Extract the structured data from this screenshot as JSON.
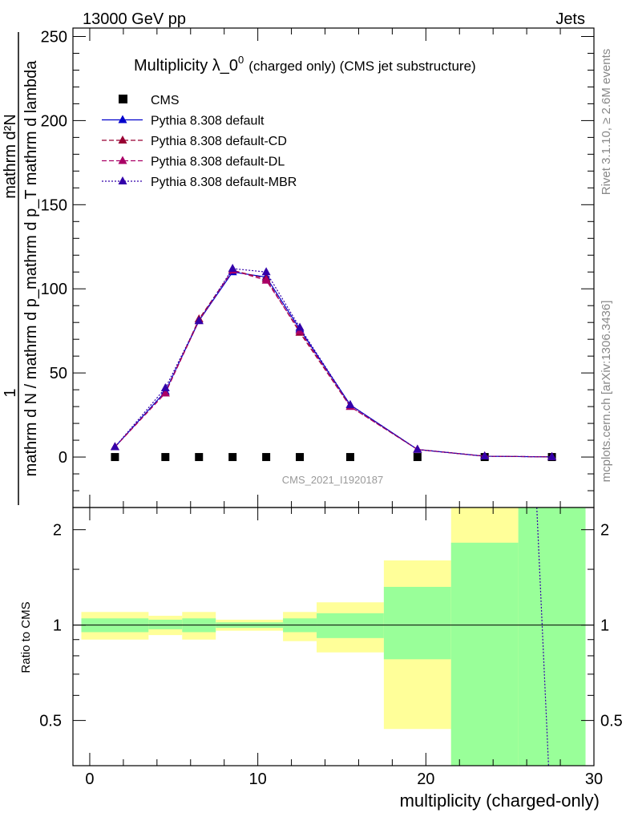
{
  "header": {
    "energy": "13000 GeV pp",
    "category": "Jets",
    "title_main": "Multiplicity λ_0",
    "title_sup": "0",
    "title_sub": "(charged only) (CMS jet substructure)",
    "rivet": "Rivet 3.1.10, ≥ 2.6M events",
    "mcplots": "mcplots.cern.ch [arXiv:1306.3436]",
    "analysis": "CMS_2021_I1920187"
  },
  "colors": {
    "cms": "#000000",
    "default": "#0000cc",
    "default_cd": "#990033",
    "default_dl": "#aa0066",
    "default_mbr": "#3300aa",
    "band_green": "#99ff99",
    "band_yellow": "#ffff99"
  },
  "chart_data": [
    {
      "type": "line",
      "ylabel_numer": "1",
      "ylabel_denom": "mathrm d N / mathrm d p_mathrm d p_T mathrm d lambda",
      "ylabel_top": "mathrm d²N",
      "xlim": [
        -1,
        30
      ],
      "ylim": [
        -30,
        255
      ],
      "yticks": [
        "0",
        "50",
        "100",
        "150",
        "200",
        "250"
      ],
      "x": [
        1.5,
        4.5,
        6.5,
        8.5,
        10.5,
        12.5,
        15.5,
        19.5,
        23.5,
        27.5
      ],
      "series": [
        {
          "name": "CMS",
          "style": "square",
          "values": [
            0,
            0,
            0,
            0,
            0,
            0,
            0,
            0,
            0,
            0
          ]
        },
        {
          "name": "Pythia 8.308 default",
          "style": "solid",
          "values": [
            6,
            39,
            81,
            110,
            107,
            76,
            31,
            4.5,
            0.5,
            0.1
          ]
        },
        {
          "name": "Pythia 8.308 default-CD",
          "style": "dashed",
          "values": [
            6,
            38,
            82,
            111,
            106,
            74,
            30,
            4.5,
            0.5,
            0.1
          ]
        },
        {
          "name": "Pythia 8.308 default-DL",
          "style": "dashed",
          "values": [
            6,
            38,
            81,
            111,
            105,
            75,
            30,
            4.5,
            0.5,
            0.1
          ]
        },
        {
          "name": "Pythia 8.308 default-MBR",
          "style": "dotted",
          "values": [
            6,
            41,
            81,
            112,
            110,
            77,
            31,
            4.5,
            0.5,
            0.1
          ]
        }
      ]
    },
    {
      "type": "area",
      "ylabel": "Ratio to CMS",
      "xlabel": "multiplicity (charged-only)",
      "xlim": [
        -1,
        30
      ],
      "xticks": [
        "0",
        "10",
        "20",
        "30"
      ],
      "yticks": [
        "0.5",
        "1",
        "2"
      ],
      "ylim": [
        0.36,
        2.35
      ],
      "bins": [
        {
          "x": [
            -0.5,
            3.5
          ],
          "green": [
            0.95,
            1.05
          ],
          "yellow": [
            0.9,
            1.1
          ]
        },
        {
          "x": [
            3.5,
            5.5
          ],
          "green": [
            0.97,
            1.04
          ],
          "yellow": [
            0.93,
            1.07
          ]
        },
        {
          "x": [
            5.5,
            7.5
          ],
          "green": [
            0.95,
            1.05
          ],
          "yellow": [
            0.9,
            1.1
          ]
        },
        {
          "x": [
            7.5,
            11.5
          ],
          "green": [
            0.98,
            1.02
          ],
          "yellow": [
            0.96,
            1.04
          ]
        },
        {
          "x": [
            11.5,
            13.5
          ],
          "green": [
            0.95,
            1.05
          ],
          "yellow": [
            0.89,
            1.1
          ]
        },
        {
          "x": [
            13.5,
            17.5
          ],
          "green": [
            0.91,
            1.09
          ],
          "yellow": [
            0.82,
            1.18
          ]
        },
        {
          "x": [
            17.5,
            21.5
          ],
          "green": [
            0.78,
            1.32
          ],
          "yellow": [
            0.47,
            1.6
          ]
        },
        {
          "x": [
            21.5,
            25.5
          ],
          "green": [
            0.36,
            1.82
          ],
          "yellow": [
            0.36,
            2.35
          ]
        },
        {
          "x": [
            25.5,
            29.5
          ],
          "green": [
            0.36,
            2.35
          ],
          "yellow": [
            0.36,
            2.35
          ]
        }
      ],
      "ratio_line": {
        "name": "Pythia 8.308 default-MBR",
        "x": [
          26.6,
          27.3
        ],
        "values": [
          2.35,
          0.36
        ]
      }
    }
  ]
}
